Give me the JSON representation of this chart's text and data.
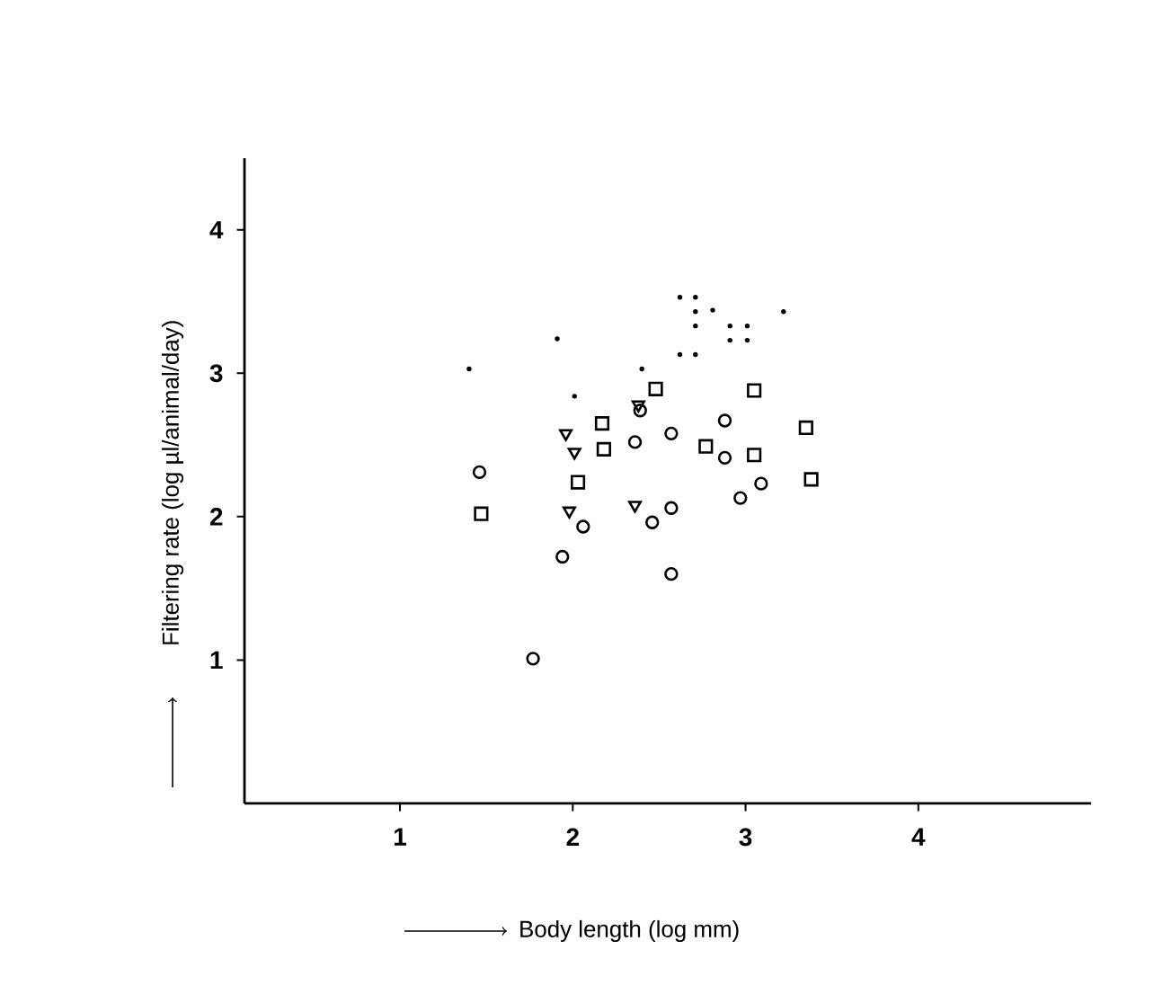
{
  "chart_data": {
    "type": "scatter",
    "xlabel": "Body length (log mm)",
    "ylabel": "Filtering rate (log µl/animal/day)",
    "xlim": [
      0.1,
      5.0
    ],
    "ylim": [
      0,
      4.5
    ],
    "xticks": [
      1,
      2,
      3,
      4
    ],
    "yticks": [
      1,
      2,
      3,
      4
    ],
    "series": [
      {
        "color": "#000000",
        "marker": "circle",
        "x": [
          1.46,
          1.77,
          1.94,
          2.06,
          2.57,
          2.46,
          2.57,
          2.36,
          2.57,
          2.88,
          2.88,
          2.97,
          3.09,
          2.39
        ],
        "values": [
          2.31,
          1.01,
          1.72,
          1.93,
          1.6,
          1.96,
          2.06,
          2.52,
          2.58,
          2.67,
          2.41,
          2.13,
          2.23,
          2.74
        ]
      },
      {
        "color": "#000000",
        "marker": "square",
        "x": [
          1.47,
          2.17,
          2.18,
          2.48,
          2.77,
          3.38,
          2.03,
          3.05,
          3.35,
          3.05
        ],
        "values": [
          2.02,
          2.65,
          2.47,
          2.89,
          2.49,
          2.26,
          2.24,
          2.88,
          2.62,
          2.43
        ]
      },
      {
        "color": "#000000",
        "marker": "triangle",
        "x": [
          1.96,
          2.01,
          1.98,
          2.36,
          2.38
        ],
        "values": [
          2.58,
          2.45,
          2.04,
          2.08,
          2.78
        ]
      },
      {
        "color": "#000000",
        "marker": "dot",
        "x": [
          1.4,
          1.91,
          2.01,
          2.4,
          2.62,
          2.71,
          2.71,
          2.81,
          2.71,
          2.91,
          3.01,
          2.91,
          3.01,
          3.22,
          2.62,
          2.71
        ],
        "values": [
          3.03,
          3.24,
          2.84,
          3.03,
          3.53,
          3.53,
          3.43,
          3.44,
          3.33,
          3.33,
          3.33,
          3.23,
          3.23,
          3.43,
          3.13,
          3.13
        ]
      }
    ]
  }
}
